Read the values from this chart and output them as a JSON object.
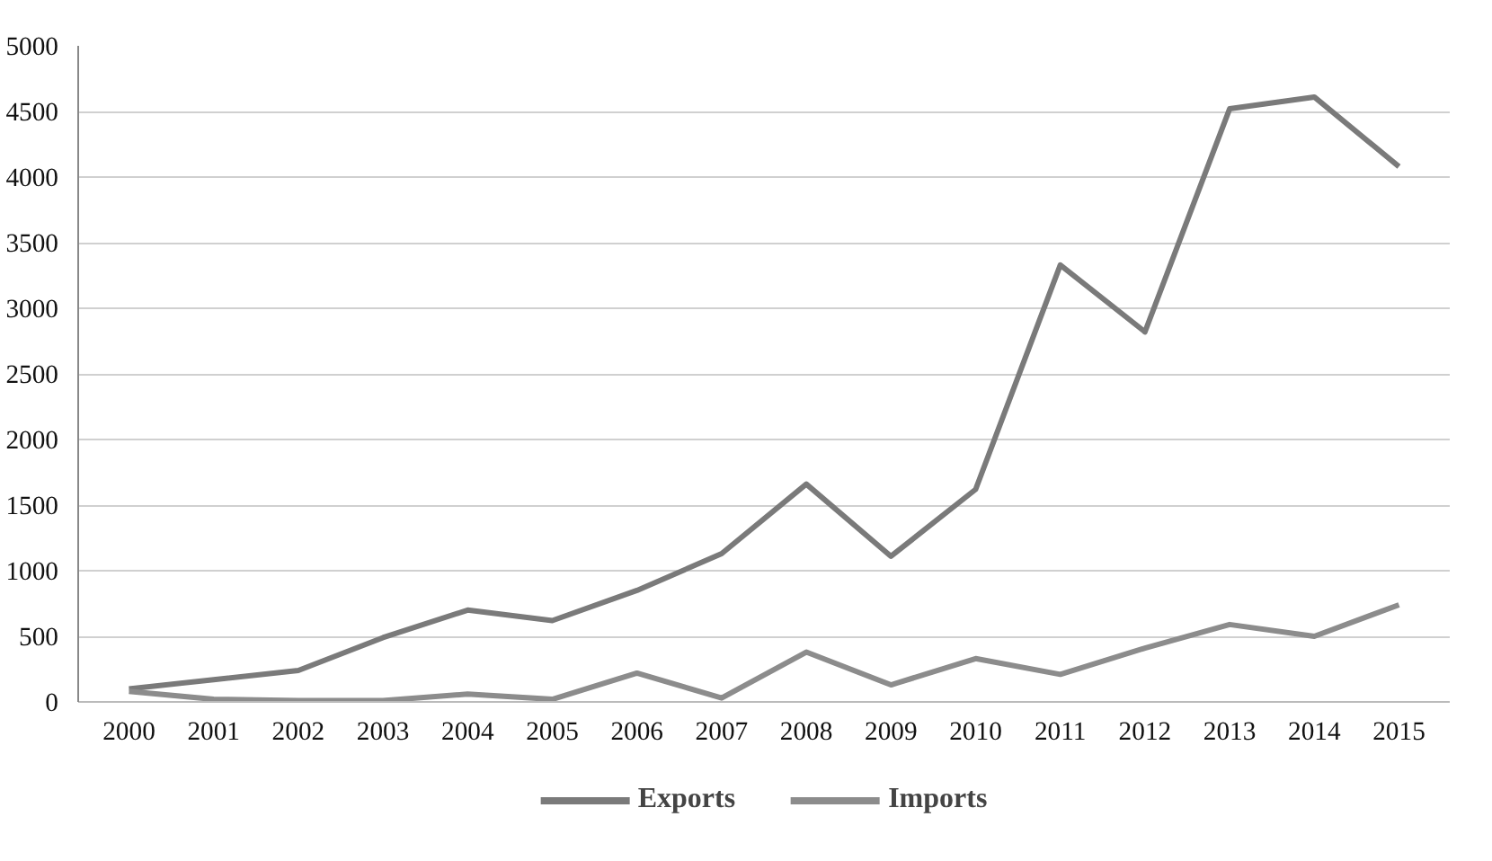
{
  "chart_data": {
    "type": "line",
    "categories": [
      "2000",
      "2001",
      "2002",
      "2003",
      "2004",
      "2005",
      "2006",
      "2007",
      "2008",
      "2009",
      "2010",
      "2011",
      "2012",
      "2013",
      "2014",
      "2015"
    ],
    "series": [
      {
        "name": "Exports",
        "color": "#7a7a7a",
        "values": [
          100,
          170,
          240,
          490,
          700,
          620,
          850,
          1130,
          1660,
          1110,
          1620,
          3330,
          2820,
          4520,
          4610,
          4080
        ]
      },
      {
        "name": "Imports",
        "color": "#8c8c8c",
        "values": [
          80,
          20,
          10,
          10,
          60,
          20,
          220,
          30,
          380,
          130,
          330,
          210,
          410,
          590,
          500,
          740
        ]
      }
    ],
    "ylim": [
      0,
      5000
    ],
    "yticks": [
      0,
      500,
      1000,
      1500,
      2000,
      2500,
      3000,
      3500,
      4000,
      4500,
      5000
    ],
    "grid": "y",
    "legend": "bottom",
    "marker": "none",
    "line_style": "solid"
  }
}
